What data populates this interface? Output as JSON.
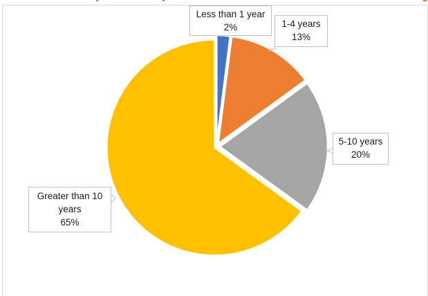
{
  "colors": {
    "less_than_1": "#4472C4",
    "one_to_four": "#ED7D31",
    "five_to_ten": "#A5A5A5",
    "greater_than_10": "#FFC000",
    "frame_border": "#D9D9D9",
    "callout_border": "#BFBFBF"
  },
  "chart_data": {
    "type": "pie",
    "title": "",
    "categories": [
      "Less than 1 year",
      "1-4 years",
      "5-10 years",
      "Greater than 10 years"
    ],
    "values": [
      2,
      13,
      20,
      65
    ],
    "unit": "%",
    "start_angle": "12 o'clock, clockwise",
    "colors": [
      "#4472C4",
      "#ED7D31",
      "#A5A5A5",
      "#FFC000"
    ],
    "data_labels": [
      {
        "category": "Less than 1 year",
        "value": "2%"
      },
      {
        "category": "1-4 years",
        "value": "13%"
      },
      {
        "category": "5-10 years",
        "value": "20%"
      },
      {
        "category": "Greater than 10 years",
        "value": "65%"
      }
    ],
    "legend": "none (data callouts)"
  },
  "labels": {
    "less_than_1": {
      "name": "Less than 1 year",
      "pct": "2%"
    },
    "one_to_four": {
      "name": "1-4 years",
      "pct": "13%"
    },
    "five_to_ten": {
      "name": "5-10 years",
      "pct": "20%"
    },
    "greater_than_10": {
      "name_line1": "Greater than 10",
      "name_line2": "years",
      "pct": "65%"
    }
  }
}
